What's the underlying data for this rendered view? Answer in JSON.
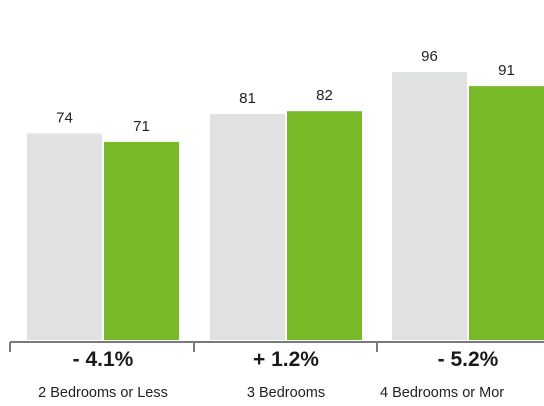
{
  "chart_data": {
    "type": "bar",
    "categories": [
      "2 Bedrooms or Less",
      "3 Bedrooms",
      "4 Bedrooms or Mor"
    ],
    "changes": [
      "- 4.1%",
      "+ 1.2%",
      "- 5.2%"
    ],
    "series": [
      {
        "values": [
          74,
          81,
          96
        ],
        "color": "#e0e2e2"
      },
      {
        "values": [
          71,
          82,
          91
        ],
        "color": "#78b928"
      }
    ],
    "ylim": [
      0,
      100
    ],
    "grid": false,
    "legend": "none",
    "axis_color": "#7a7a7a"
  }
}
